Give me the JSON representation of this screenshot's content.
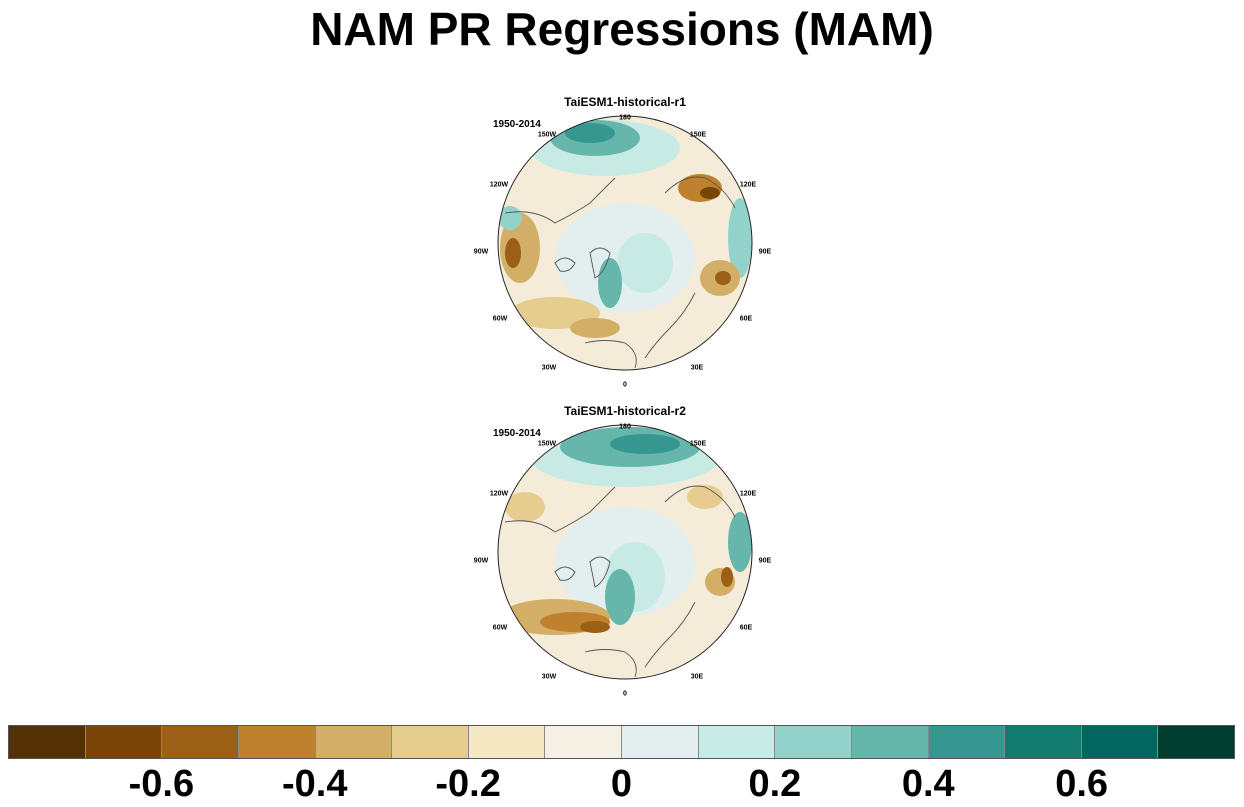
{
  "title": "NAM PR Regressions (MAM)",
  "panels": [
    {
      "title": "TaiESM1-historical-r1",
      "period": "1950-2014"
    },
    {
      "title": "TaiESM1-historical-r2",
      "period": "1950-2014"
    }
  ],
  "longitude_labels": [
    "180",
    "150E",
    "120E",
    "90E",
    "60E",
    "30E",
    "0",
    "30W",
    "60W",
    "90W",
    "120W",
    "150W"
  ],
  "colorbar": {
    "colors": [
      "#543005",
      "#7a4407",
      "#9b5f16",
      "#bf812d",
      "#d3ae66",
      "#e6cd8f",
      "#f6e8c3",
      "#f5f0e4",
      "#e2efee",
      "#c7eae5",
      "#93d2ca",
      "#67b6ac",
      "#35978f",
      "#137a70",
      "#01665e",
      "#003c30"
    ],
    "tick_labels": [
      "-0.6",
      "-0.4",
      "-0.2",
      "0",
      "0.2",
      "0.4",
      "0.6"
    ]
  }
}
